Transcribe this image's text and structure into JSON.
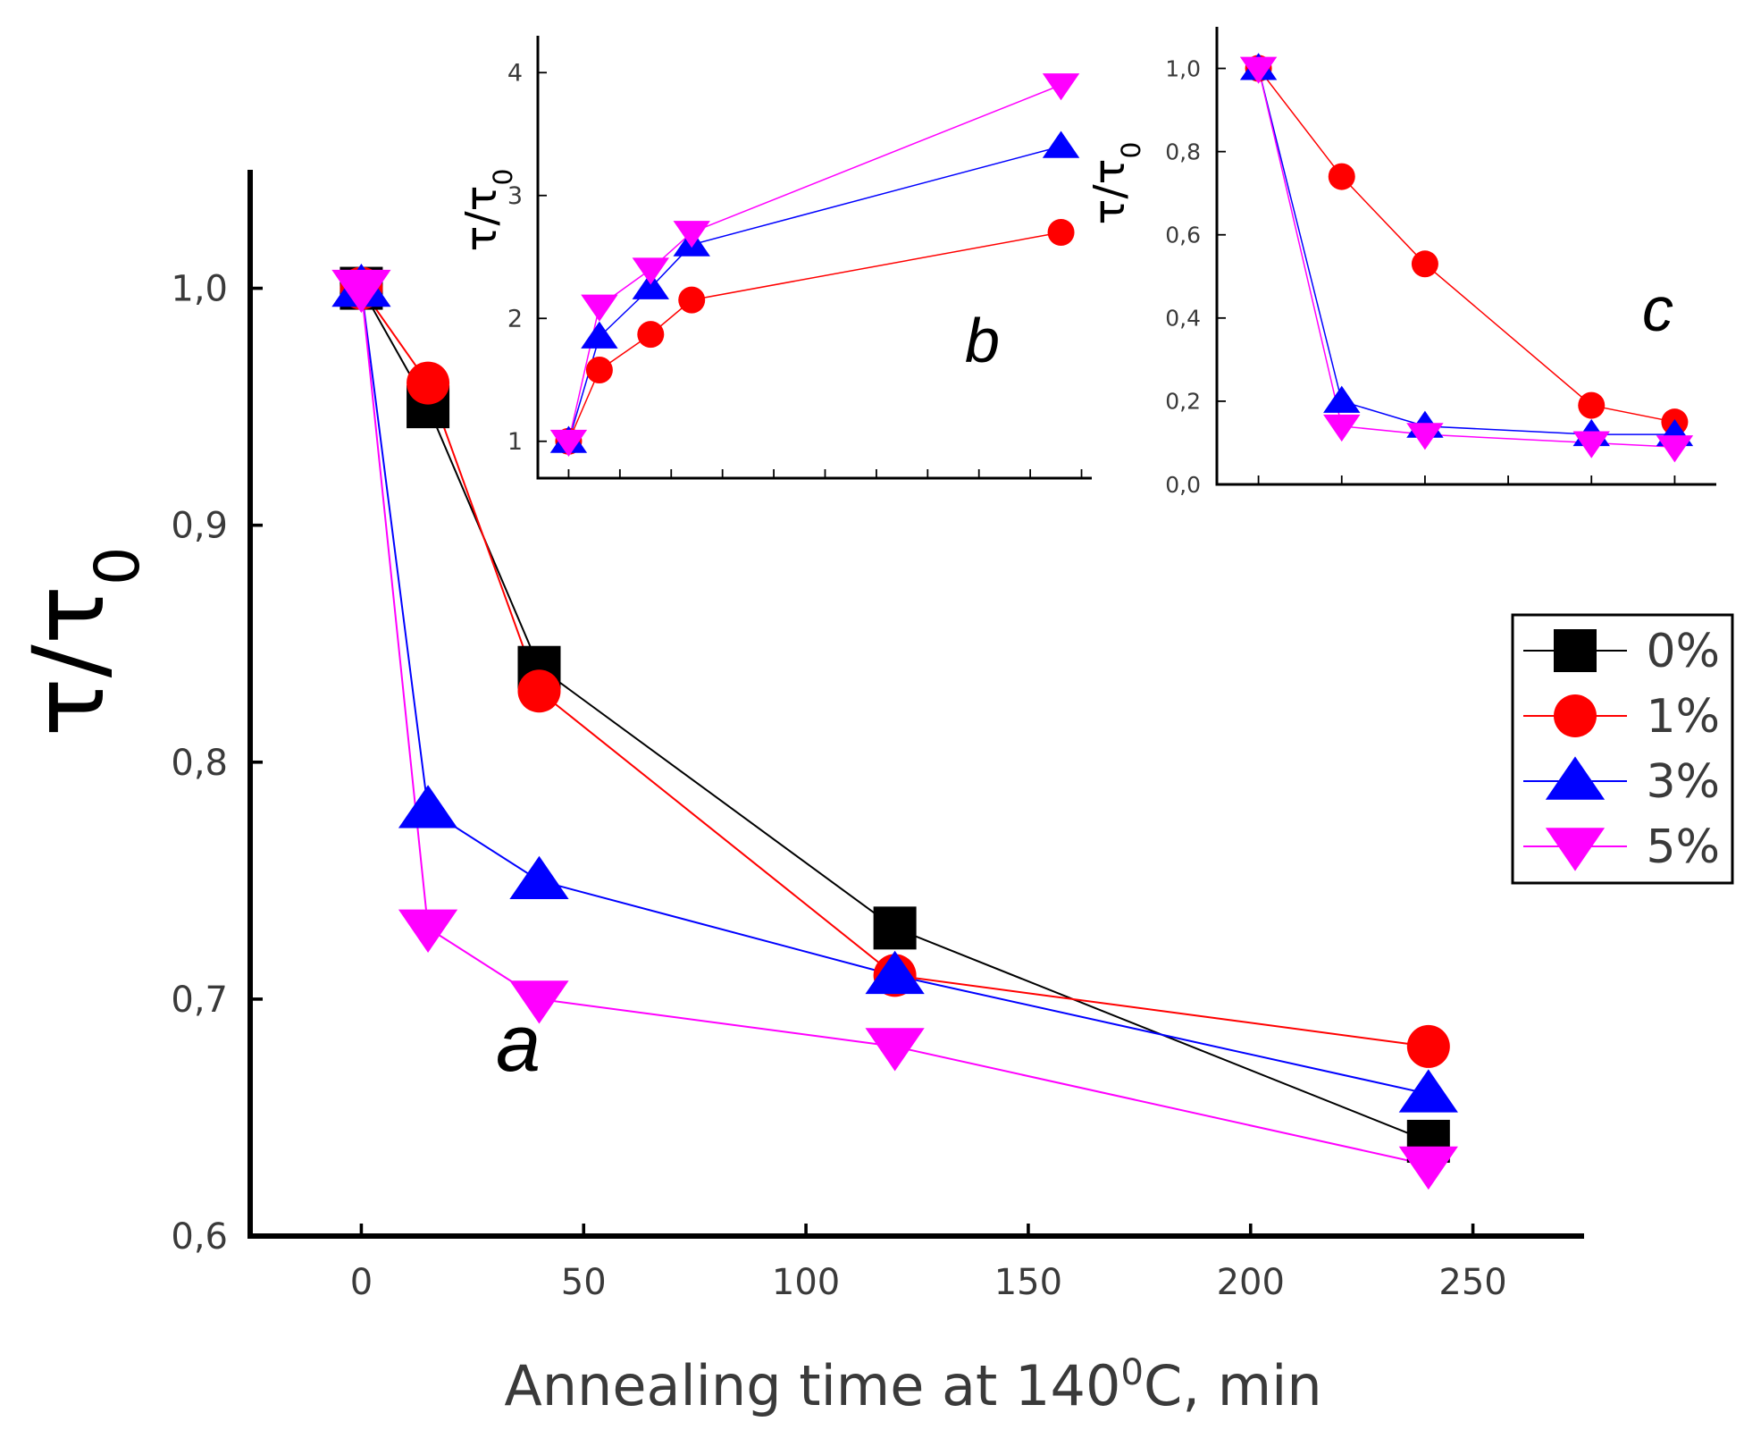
{
  "colors": {
    "0%": "#000000",
    "1%": "#ff0000",
    "3%": "#0000ff",
    "5%": "#ff00ff",
    "axis": "#000000",
    "text": "#3a3a3a"
  },
  "chart_data": [
    {
      "id": "a",
      "type": "line",
      "panel_label": "a",
      "xlabel": "Annealing time at 140⁰C, min",
      "xlabel_parts": {
        "pre": "Annealing time at 140",
        "sup": "0",
        "post": "C, min"
      },
      "ylabel": "τ/τ0",
      "ylabel_parts": {
        "main": "τ/τ",
        "sub": "0"
      },
      "xlim": [
        -25,
        275
      ],
      "ylim": [
        0.6,
        1.05
      ],
      "xticks": [
        0,
        50,
        100,
        150,
        200,
        250
      ],
      "xtick_labels": [
        "0",
        "50",
        "100",
        "150",
        "200",
        "250"
      ],
      "yticks": [
        0.6,
        0.7,
        0.8,
        0.9,
        1.0
      ],
      "ytick_labels": [
        "0,6",
        "0,7",
        "0,8",
        "0,9",
        "1,0"
      ],
      "series": [
        {
          "name": "0%",
          "marker": "square",
          "x": [
            0,
            15,
            40,
            120,
            240
          ],
          "y": [
            1.0,
            0.95,
            0.84,
            0.73,
            0.64
          ]
        },
        {
          "name": "1%",
          "marker": "circle",
          "x": [
            0,
            15,
            40,
            120,
            240
          ],
          "y": [
            1.0,
            0.96,
            0.83,
            0.71,
            0.68
          ]
        },
        {
          "name": "3%",
          "marker": "triangle-up",
          "x": [
            0,
            15,
            40,
            120,
            240
          ],
          "y": [
            1.0,
            0.78,
            0.75,
            0.71,
            0.66
          ]
        },
        {
          "name": "5%",
          "marker": "triangle-down",
          "x": [
            0,
            15,
            40,
            120,
            240
          ],
          "y": [
            1.0,
            0.73,
            0.7,
            0.68,
            0.63
          ]
        }
      ],
      "legend": {
        "placement": "right",
        "entries": [
          "0%",
          "1%",
          "3%",
          "5%"
        ]
      }
    },
    {
      "id": "b",
      "type": "line",
      "panel_label": "b",
      "xlabel": "",
      "ylabel": "τ/τ0",
      "ylabel_parts": {
        "main": "τ/τ",
        "sub": "0"
      },
      "xlim": [
        -15,
        255
      ],
      "ylim": [
        0.7,
        4.3
      ],
      "xticks": [
        0,
        25,
        50,
        75,
        100,
        125,
        150,
        175,
        200,
        225,
        250
      ],
      "yticks": [
        1,
        2,
        3,
        4
      ],
      "ytick_labels": [
        "1",
        "2",
        "3",
        "4"
      ],
      "series": [
        {
          "name": "1%",
          "marker": "circle",
          "x": [
            0,
            15,
            40,
            60,
            240
          ],
          "y": [
            1.0,
            1.58,
            1.87,
            2.15,
            2.7
          ]
        },
        {
          "name": "3%",
          "marker": "triangle-up",
          "x": [
            0,
            15,
            40,
            60,
            240
          ],
          "y": [
            1.0,
            1.85,
            2.25,
            2.6,
            3.4
          ]
        },
        {
          "name": "5%",
          "marker": "triangle-down",
          "x": [
            0,
            15,
            40,
            60,
            240
          ],
          "y": [
            1.0,
            2.1,
            2.4,
            2.7,
            3.9
          ]
        }
      ]
    },
    {
      "id": "c",
      "type": "line",
      "panel_label": "c",
      "xlabel": "",
      "ylabel": "τ/τ0",
      "ylabel_parts": {
        "main": "τ/τ",
        "sub": "0"
      },
      "xlim": [
        -25,
        275
      ],
      "ylim": [
        0.0,
        1.1
      ],
      "xticks": [
        0,
        50,
        100,
        150,
        200,
        250
      ],
      "yticks": [
        0.0,
        0.2,
        0.4,
        0.6,
        0.8,
        1.0
      ],
      "ytick_labels": [
        "0,0",
        "0,2",
        "0,4",
        "0,6",
        "0,8",
        "1,0"
      ],
      "series": [
        {
          "name": "1%",
          "marker": "circle",
          "x": [
            0,
            50,
            100,
            200,
            250
          ],
          "y": [
            1.0,
            0.74,
            0.53,
            0.19,
            0.15
          ]
        },
        {
          "name": "3%",
          "marker": "triangle-up",
          "x": [
            0,
            50,
            100,
            200,
            250
          ],
          "y": [
            1.0,
            0.2,
            0.14,
            0.12,
            0.12
          ]
        },
        {
          "name": "5%",
          "marker": "triangle-down",
          "x": [
            0,
            50,
            100,
            200,
            250
          ],
          "y": [
            1.0,
            0.14,
            0.12,
            0.1,
            0.09
          ]
        }
      ]
    }
  ]
}
